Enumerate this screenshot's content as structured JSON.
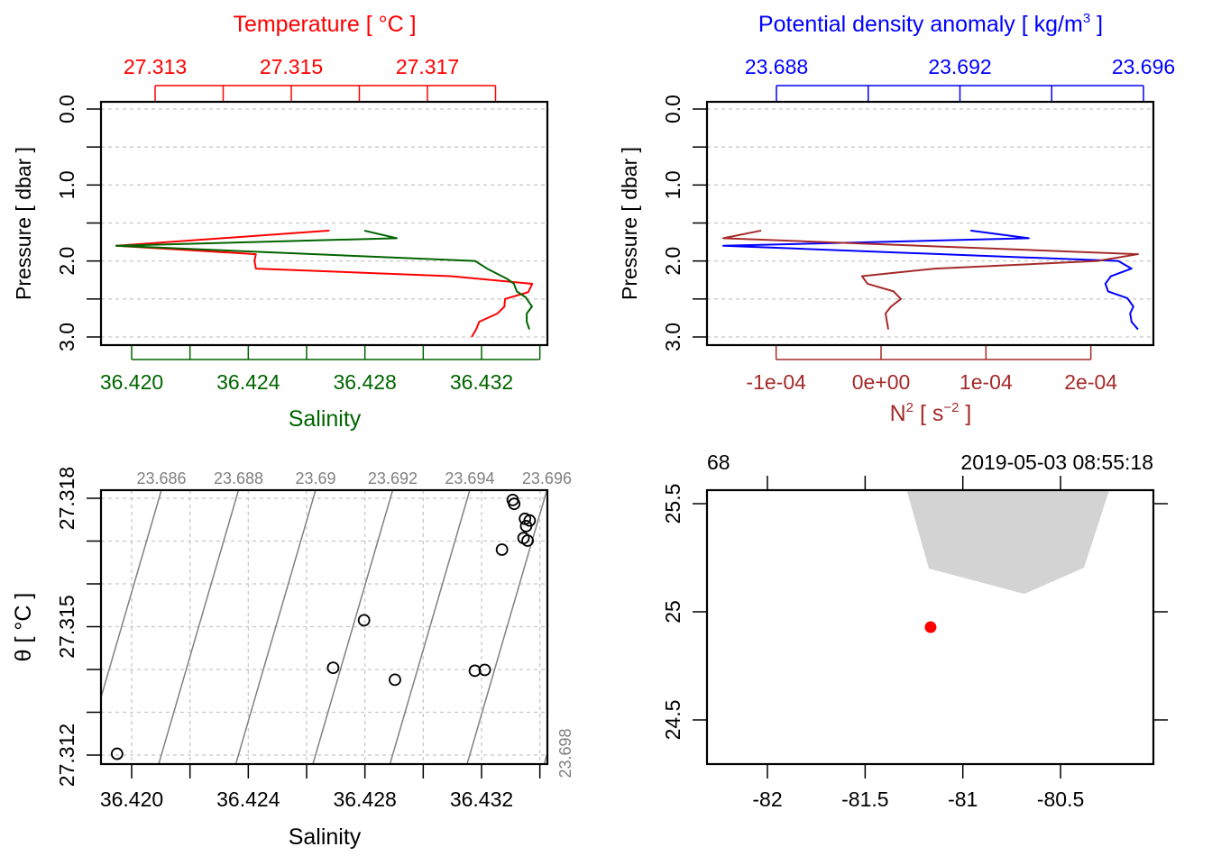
{
  "colors": {
    "temperature": "#FF0000",
    "salinity": "#006400",
    "density": "#0000FF",
    "n2": "#A52A2A",
    "isopycnal": "#808080",
    "grid": "#C8C8C8",
    "land": "#D3D3D3",
    "station": "#FF0000"
  },
  "chart_data": [
    {
      "type": "line",
      "panel": "profile-temperature-salinity",
      "title": "Temperature [ °C ]",
      "xlabel": "Salinity",
      "ylabel": "Pressure [ dbar ]",
      "ylim": [
        3.0,
        0.0
      ],
      "grid": true,
      "y_ticks": [
        "0.0",
        "1.0",
        "2.0",
        "3.0"
      ],
      "y_tick_values": [
        0,
        0.5,
        1,
        1.5,
        2,
        2.5,
        3
      ],
      "x_bottom_tick_values": [
        36.42,
        36.422,
        36.424,
        36.426,
        36.428,
        36.43,
        36.432,
        36.434
      ],
      "x_bottom_tick_labels": [
        "36.420",
        "36.424",
        "36.428",
        "36.432"
      ],
      "x_top_tick_values": [
        27.313,
        27.314,
        27.315,
        27.316,
        27.317,
        27.318
      ],
      "x_top_tick_labels": [
        "27.313",
        "27.315",
        "27.317"
      ],
      "series": [
        {
          "name": "Temperature",
          "axis": "top",
          "pressure": [
            1.6,
            1.8,
            1.91,
            2.0,
            2.1,
            2.2,
            2.3,
            2.41,
            2.5,
            2.6,
            2.69,
            2.8,
            2.89,
            3.0
          ],
          "values": [
            27.31556,
            27.31243,
            27.31448,
            27.31446,
            27.31448,
            27.31734,
            27.31854,
            27.31848,
            27.31814,
            27.31813,
            27.31803,
            27.31776,
            27.31772,
            27.31765
          ]
        },
        {
          "name": "Salinity",
          "axis": "bottom",
          "pressure": [
            1.6,
            1.7,
            1.8,
            2.0,
            2.1,
            2.24,
            2.3,
            2.4,
            2.48,
            2.6,
            2.69,
            2.8,
            2.9
          ],
          "values": [
            36.42798,
            36.42909,
            36.41947,
            36.43178,
            36.43219,
            36.4329,
            36.43311,
            36.43321,
            36.43352,
            36.43373,
            36.43355,
            36.43355,
            36.43364
          ]
        }
      ]
    },
    {
      "type": "line",
      "panel": "profile-density-n2",
      "title_parts": [
        "Potential density anomaly [ kg/m",
        "3",
        " ]"
      ],
      "xlabel_parts": [
        "N",
        "2",
        " [ s",
        "−2",
        " ]"
      ],
      "ylabel": "Pressure [ dbar ]",
      "ylim": [
        3.0,
        0.0
      ],
      "grid": true,
      "y_ticks": [
        "0.0",
        "1.0",
        "2.0",
        "3.0"
      ],
      "x_top_tick_values": [
        23.688,
        23.69,
        23.692,
        23.694,
        23.696
      ],
      "x_top_tick_labels": [
        "23.688",
        "23.692",
        "23.696"
      ],
      "x_bottom_tick_values": [
        -0.0001,
        0,
        0.0001,
        0.0002
      ],
      "x_bottom_tick_labels": [
        "-1e-04",
        "0e+00",
        "1e-04",
        "2e-04"
      ],
      "series": [
        {
          "name": "Potential density anomaly",
          "axis": "top",
          "pressure": [
            1.6,
            1.7,
            1.8,
            2.0,
            2.1,
            2.2,
            2.3,
            2.4,
            2.49,
            2.6,
            2.69,
            2.8,
            2.9
          ],
          "values": [
            23.69223,
            23.6935,
            23.68684,
            23.69545,
            23.69574,
            23.69529,
            23.69517,
            23.69523,
            23.69565,
            23.69578,
            23.69571,
            23.69574,
            23.69588
          ]
        },
        {
          "name": "N2",
          "axis": "bottom",
          "pressure": [
            1.6,
            1.7,
            1.91,
            2.0,
            2.1,
            2.2,
            2.3,
            2.4,
            2.5,
            2.6,
            2.69,
            2.9
          ],
          "values": [
            -0.0001143,
            -0.0001504,
            0.000245,
            0.0002063,
            5.16e-05,
            -1.81e-05,
            -1.29e-05,
            1.2e-05,
            1.89e-05,
            9.5e-06,
            4.3e-06,
            6.9e-06
          ]
        }
      ]
    },
    {
      "type": "scatter",
      "panel": "ts-diagram",
      "xlabel": "Salinity",
      "ylabel": "θ [ °C ]",
      "grid": true,
      "y_tick_values": [
        27.312,
        27.313,
        27.314,
        27.315,
        27.316,
        27.317,
        27.318
      ],
      "y_tick_labels": [
        "27.312",
        "27.315",
        "27.318"
      ],
      "x_tick_values": [
        36.42,
        36.422,
        36.424,
        36.426,
        36.428,
        36.43,
        36.432,
        36.434
      ],
      "x_tick_labels": [
        "36.420",
        "36.424",
        "36.428",
        "36.432"
      ],
      "isopycnal_labels": [
        "23.686",
        "23.688",
        "23.69",
        "23.692",
        "23.694",
        "23.696"
      ],
      "isopycnal_levels": [
        23.686,
        23.688,
        23.69,
        23.692,
        23.694,
        23.696,
        23.698
      ],
      "isopycnal_right_label": "23.698",
      "points": [
        [
          36.43307,
          27.31796
        ],
        [
          36.43312,
          27.31787
        ],
        [
          36.43349,
          27.31752
        ],
        [
          36.43365,
          27.31748
        ],
        [
          36.43353,
          27.31735
        ],
        [
          36.43344,
          27.31707
        ],
        [
          36.43358,
          27.31701
        ],
        [
          36.4327,
          27.3168
        ],
        [
          36.42797,
          27.31515
        ],
        [
          36.42691,
          27.31404
        ],
        [
          36.42903,
          27.31376
        ],
        [
          36.43177,
          27.31397
        ],
        [
          36.43211,
          27.31399
        ],
        [
          36.4195,
          27.31203
        ]
      ]
    },
    {
      "type": "scatter",
      "panel": "station-map",
      "station_label": "68",
      "datetime_label": "2019-05-03 08:55:18",
      "x_tick_values": [
        -82,
        -81.5,
        -81,
        -80.5
      ],
      "x_tick_labels": [
        "-82",
        "-81.5",
        "-81",
        "-80.5"
      ],
      "y_tick_values": [
        24.5,
        25,
        25.5
      ],
      "y_tick_labels": [
        "24.5",
        "25",
        "25.5"
      ],
      "station": {
        "lon": -81.165,
        "lat": 24.929
      },
      "land_polygon": [
        [
          -81.299,
          25.6
        ],
        [
          -81.174,
          25.2
        ],
        [
          -80.685,
          25.083
        ],
        [
          -80.38,
          25.204
        ],
        [
          -80.237,
          25.6
        ]
      ]
    }
  ]
}
